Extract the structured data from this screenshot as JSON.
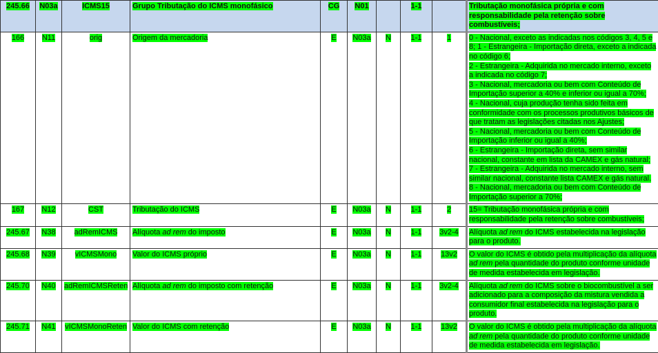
{
  "highlight_color": "#00ff00",
  "header_bg": "#c6d7ee",
  "header": {
    "id": "245.66",
    "code": "N03a",
    "field": "ICMS15",
    "description": "Grupo Tributação do ICMS monofásico",
    "ele": "CG",
    "parent": "N01",
    "type": "",
    "occ": "1-1",
    "size": "",
    "notes": "Tributação monofásica própria e com responsabilidade pela retenção sobre combustíveis;"
  },
  "rows": [
    {
      "id": "166",
      "code": "N11",
      "field": "orig",
      "description": [
        {
          "t": "Origem da mercadoria"
        }
      ],
      "ele": "E",
      "parent": "N03a",
      "type": "N",
      "occ": "1-1",
      "size": "1",
      "notes_items": [
        "0 - Nacional, exceto as indicadas nos códigos 3, 4, 5 e 8; 1 - Estrangeira - Importação direta, exceto a indicada no código 6;",
        "2 - Estrangeira - Adquirida no mercado interno, exceto a indicada no código 7;",
        "3 - Nacional, mercadoria ou bem com Conteúdo de Importação superior a 40% e inferior ou igual a 70%;",
        "4 - Nacional, cuja produção tenha sido feita em conformidade com os processos produtivos básicos de que tratam as legislações citadas nos Ajustes;",
        "5 - Nacional, mercadoria ou bem com Conteúdo de Importação inferior ou igual a 40%;",
        "6 - Estrangeira - Importação direta, sem similar nacional, constante em lista da CAMEX e gás natural;",
        "7 - Estrangeira - Adquirida no mercado interno, sem similar nacional, constante lista CAMEX e gás natural.",
        "8 - Nacional, mercadoria ou bem com Conteúdo de Importação superior a 70%;"
      ]
    },
    {
      "id": "167",
      "code": "N12",
      "field": "CST",
      "description": [
        {
          "t": "Tributação do ICMS"
        }
      ],
      "ele": "E",
      "parent": "N03a",
      "type": "N",
      "occ": "1-1",
      "size": "2",
      "notes": [
        {
          "t": "15= Tributação monofásica própria e com responsabilidade pela retenção sobre combustíveis;"
        }
      ]
    },
    {
      "id": "245.67",
      "code": "N38",
      "field": "adRemICMS",
      "description": [
        {
          "t": "Alíquota "
        },
        {
          "t": "ad rem",
          "i": true
        },
        {
          "t": " do imposto"
        }
      ],
      "ele": "E",
      "parent": "N03a",
      "type": "N",
      "occ": "1-1",
      "size": "3v2-4",
      "notes": [
        {
          "t": "Alíquota "
        },
        {
          "t": "ad rem",
          "i": true
        },
        {
          "t": " do ICMS estabelecida na legislação para o produto."
        }
      ]
    },
    {
      "id": "245.68",
      "code": "N39",
      "field": "vICMSMono",
      "description": [
        {
          "t": "Valor do ICMS próprio"
        }
      ],
      "ele": "E",
      "parent": "N03a",
      "type": "N",
      "occ": "1-1",
      "size": "13v2",
      "notes": [
        {
          "t": "O valor do ICMS é obtido pela multiplicação da alíquota "
        },
        {
          "t": "ad rem",
          "i": true
        },
        {
          "t": " pela quantidade do produto conforme  unidade de medida estabelecida em legislação."
        }
      ]
    },
    {
      "id": "245.70",
      "code": "N40",
      "field": "adRemICMSReten",
      "description": [
        {
          "t": "Alíquota "
        },
        {
          "t": "ad rem",
          "i": true
        },
        {
          "t": " do imposto com retenção"
        }
      ],
      "ele": "E",
      "parent": "N03a",
      "type": "N",
      "occ": "1-1",
      "size": "3v2-4",
      "notes": [
        {
          "t": "Alíquota "
        },
        {
          "t": "ad rem",
          "i": true
        },
        {
          "t": " do ICMS sobre o biocombustível a ser adicionado para a composição da mistura vendida a consumidor final estabelecida na legislação para o produto."
        }
      ]
    },
    {
      "id": "245.71",
      "code": "N41",
      "field": "vICMSMonoReten",
      "description": [
        {
          "t": "Valor do ICMS com retenção"
        }
      ],
      "ele": "E",
      "parent": "N03a",
      "type": "N",
      "occ": "1-1",
      "size": "13v2",
      "notes": [
        {
          "t": "O valor do ICMS é obtido pela multiplicação da alíquota "
        },
        {
          "t": "ad rem",
          "i": true
        },
        {
          "t": " pela quantidade do produto conforme  unidade de medida estabelecida em legislação."
        }
      ]
    }
  ]
}
